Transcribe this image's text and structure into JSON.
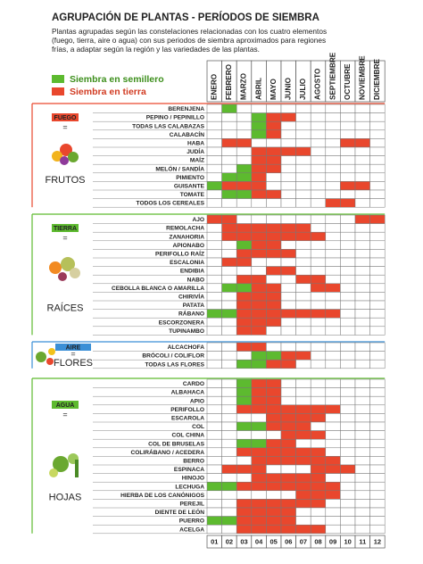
{
  "header": {
    "title": "AGRUPACIÓN DE PLANTAS - PERÍODOS DE SIEMBRA",
    "description": [
      "Plantas agrupadas según las constelaciones relacionadas con los cuatro elementos",
      "(fuego, tierra, aire o agua) con sus periodos de siembra aproximados para regiones",
      "frías, a adaptar según la región y las variedades de las plantas."
    ]
  },
  "legend": [
    {
      "label": "Siembra en semillero",
      "color": "#5dba2f"
    },
    {
      "label": "Siembra en tierra",
      "color": "#e9472d"
    }
  ],
  "months": [
    "ENERO",
    "FEBRERO",
    "MARZO",
    "ABRIL",
    "MAYO",
    "JUNIO",
    "JULIO",
    "AGOSTO",
    "SEPTIEMBRE",
    "OCTUBRE",
    "NOVIEMBRE",
    "DICIEMBRE"
  ],
  "month_numbers": [
    "01",
    "02",
    "03",
    "04",
    "05",
    "06",
    "07",
    "08",
    "09",
    "10",
    "11",
    "12"
  ],
  "groups": [
    {
      "element": "FUEGO",
      "element_color": "#e9472d",
      "equals": "=",
      "name": "FRUTOS",
      "rows": [
        {
          "label": "BERENJENA",
          "cells": [
            null,
            0,
            null,
            null,
            null,
            null,
            null,
            null,
            null,
            null,
            null,
            null
          ]
        },
        {
          "label": "PEPINO / PEPINILLO",
          "cells": [
            null,
            null,
            null,
            0,
            1,
            1,
            null,
            null,
            null,
            null,
            null,
            null
          ]
        },
        {
          "label": "TODAS LAS CALABAZAS",
          "cells": [
            null,
            null,
            null,
            0,
            1,
            null,
            null,
            null,
            null,
            null,
            null,
            null
          ]
        },
        {
          "label": "CALABACÍN",
          "cells": [
            null,
            null,
            null,
            0,
            1,
            null,
            null,
            null,
            null,
            null,
            null,
            null
          ]
        },
        {
          "label": "HABA",
          "cells": [
            null,
            1,
            1,
            null,
            null,
            null,
            null,
            null,
            null,
            1,
            1,
            null
          ]
        },
        {
          "label": "JUDÍA",
          "cells": [
            null,
            null,
            null,
            1,
            1,
            1,
            1,
            null,
            null,
            null,
            null,
            null
          ]
        },
        {
          "label": "MAÍZ",
          "cells": [
            null,
            null,
            null,
            1,
            1,
            null,
            null,
            null,
            null,
            null,
            null,
            null
          ]
        },
        {
          "label": "MELÓN / SANDÍA",
          "cells": [
            null,
            null,
            0,
            1,
            1,
            null,
            null,
            null,
            null,
            null,
            null,
            null
          ]
        },
        {
          "label": "PIMIENTO",
          "cells": [
            null,
            0,
            0,
            1,
            null,
            null,
            null,
            null,
            null,
            null,
            null,
            null
          ]
        },
        {
          "label": "GUISANTE",
          "cells": [
            0,
            1,
            1,
            1,
            null,
            null,
            null,
            null,
            null,
            1,
            1,
            null
          ]
        },
        {
          "label": "TOMATE",
          "cells": [
            null,
            0,
            0,
            1,
            1,
            null,
            null,
            null,
            null,
            null,
            null,
            null
          ]
        },
        {
          "label": "TODOS LOS CEREALES",
          "cells": [
            null,
            null,
            null,
            null,
            null,
            null,
            null,
            null,
            1,
            1,
            null,
            null
          ]
        }
      ]
    },
    {
      "element": "TIERRA",
      "element_color": "#5dba2f",
      "equals": "=",
      "name": "RAÍCES",
      "rows": [
        {
          "label": "AJO",
          "cells": [
            1,
            1,
            null,
            null,
            null,
            null,
            null,
            null,
            null,
            null,
            1,
            1
          ]
        },
        {
          "label": "REMOLACHA",
          "cells": [
            null,
            1,
            1,
            1,
            1,
            1,
            1,
            null,
            null,
            null,
            null,
            null
          ]
        },
        {
          "label": "ZANAHORIA",
          "cells": [
            null,
            1,
            1,
            1,
            1,
            1,
            1,
            1,
            null,
            null,
            null,
            null
          ]
        },
        {
          "label": "APIONABO",
          "cells": [
            null,
            null,
            0,
            1,
            1,
            null,
            null,
            null,
            null,
            null,
            null,
            null
          ]
        },
        {
          "label": "PERIFOLLO RAÍZ",
          "cells": [
            null,
            null,
            1,
            1,
            1,
            1,
            null,
            null,
            null,
            null,
            null,
            null
          ]
        },
        {
          "label": "ESCALONIA",
          "cells": [
            null,
            1,
            1,
            null,
            null,
            null,
            null,
            null,
            null,
            null,
            null,
            null
          ]
        },
        {
          "label": "ENDIBIA",
          "cells": [
            null,
            null,
            null,
            null,
            1,
            1,
            null,
            null,
            null,
            null,
            null,
            null
          ]
        },
        {
          "label": "NABO",
          "cells": [
            null,
            null,
            1,
            1,
            null,
            null,
            1,
            1,
            null,
            null,
            null,
            null
          ]
        },
        {
          "label": "CEBOLLA BLANCA O AMARILLA",
          "cells": [
            null,
            0,
            0,
            1,
            1,
            null,
            null,
            1,
            1,
            null,
            null,
            null
          ]
        },
        {
          "label": "CHIRIVÍA",
          "cells": [
            null,
            null,
            1,
            1,
            1,
            null,
            null,
            null,
            null,
            null,
            null,
            null
          ]
        },
        {
          "label": "PATATA",
          "cells": [
            null,
            null,
            1,
            1,
            1,
            null,
            null,
            null,
            null,
            null,
            null,
            null
          ]
        },
        {
          "label": "RÁBANO",
          "cells": [
            0,
            0,
            1,
            1,
            1,
            1,
            1,
            1,
            1,
            null,
            null,
            null
          ]
        },
        {
          "label": "ESCORZONERA",
          "cells": [
            null,
            null,
            1,
            1,
            1,
            null,
            null,
            null,
            null,
            null,
            null,
            null
          ]
        },
        {
          "label": "TUPINAMBO",
          "cells": [
            null,
            null,
            1,
            1,
            null,
            null,
            null,
            null,
            null,
            null,
            null,
            null
          ]
        }
      ]
    },
    {
      "element": "AIRE",
      "element_color": "#3a8fd6",
      "equals": "=",
      "name": "FLORES",
      "rows": [
        {
          "label": "ALCACHOFA",
          "cells": [
            null,
            null,
            1,
            1,
            null,
            null,
            null,
            null,
            null,
            null,
            null,
            null
          ]
        },
        {
          "label": "BRÓCOLI / COLIFLOR",
          "cells": [
            null,
            null,
            null,
            0,
            0,
            1,
            1,
            null,
            null,
            null,
            null,
            null
          ]
        },
        {
          "label": "TODAS LAS FLORES",
          "cells": [
            null,
            null,
            0,
            0,
            1,
            1,
            null,
            null,
            null,
            null,
            null,
            null
          ]
        }
      ]
    },
    {
      "element": "AGUA",
      "element_color": "#5dba2f",
      "equals": "=",
      "name": "HOJAS",
      "rows": [
        {
          "label": "CARDO",
          "cells": [
            null,
            null,
            0,
            1,
            1,
            null,
            null,
            null,
            null,
            null,
            null,
            null
          ]
        },
        {
          "label": "ALBAHACA",
          "cells": [
            null,
            null,
            0,
            1,
            1,
            null,
            null,
            null,
            null,
            null,
            null,
            null
          ]
        },
        {
          "label": "APIO",
          "cells": [
            null,
            null,
            0,
            1,
            1,
            null,
            null,
            null,
            null,
            null,
            null,
            null
          ]
        },
        {
          "label": "PERIFOLLO",
          "cells": [
            null,
            null,
            1,
            1,
            1,
            1,
            1,
            1,
            1,
            null,
            null,
            null
          ]
        },
        {
          "label": "ESCAROLA",
          "cells": [
            null,
            null,
            null,
            null,
            1,
            1,
            1,
            1,
            null,
            null,
            null,
            null
          ]
        },
        {
          "label": "COL",
          "cells": [
            null,
            null,
            0,
            0,
            1,
            1,
            1,
            null,
            null,
            null,
            null,
            null
          ]
        },
        {
          "label": "COL CHINA",
          "cells": [
            null,
            null,
            null,
            null,
            null,
            1,
            1,
            1,
            null,
            null,
            null,
            null
          ]
        },
        {
          "label": "COL DE BRUSELAS",
          "cells": [
            null,
            null,
            0,
            0,
            1,
            1,
            null,
            null,
            null,
            null,
            null,
            null
          ]
        },
        {
          "label": "COLIRÁBANO / ACEDERA",
          "cells": [
            null,
            null,
            1,
            1,
            1,
            1,
            1,
            1,
            null,
            null,
            null,
            null
          ]
        },
        {
          "label": "BERRO",
          "cells": [
            null,
            null,
            null,
            1,
            1,
            1,
            1,
            1,
            1,
            null,
            null,
            null
          ]
        },
        {
          "label": "ESPINACA",
          "cells": [
            null,
            1,
            1,
            1,
            null,
            null,
            null,
            1,
            1,
            1,
            null,
            null
          ]
        },
        {
          "label": "HINOJO",
          "cells": [
            null,
            null,
            null,
            1,
            1,
            1,
            1,
            1,
            null,
            null,
            null,
            null
          ]
        },
        {
          "label": "LECHUGA",
          "cells": [
            0,
            0,
            1,
            1,
            1,
            1,
            1,
            1,
            1,
            null,
            null,
            null
          ]
        },
        {
          "label": "HIERBA DE LOS CANÓNIGOS",
          "cells": [
            null,
            null,
            null,
            null,
            null,
            null,
            1,
            1,
            1,
            null,
            null,
            null
          ]
        },
        {
          "label": "PEREJIL",
          "cells": [
            null,
            null,
            1,
            1,
            1,
            1,
            1,
            1,
            null,
            null,
            null,
            null
          ]
        },
        {
          "label": "DIENTE DE LEÓN",
          "cells": [
            null,
            null,
            1,
            1,
            1,
            1,
            null,
            null,
            null,
            null,
            null,
            null
          ]
        },
        {
          "label": "PUERRO",
          "cells": [
            0,
            0,
            1,
            1,
            1,
            1,
            null,
            null,
            null,
            null,
            null,
            null
          ]
        },
        {
          "label": "ACELGA",
          "cells": [
            null,
            null,
            1,
            1,
            1,
            1,
            1,
            1,
            null,
            null,
            null,
            null
          ]
        }
      ]
    }
  ]
}
